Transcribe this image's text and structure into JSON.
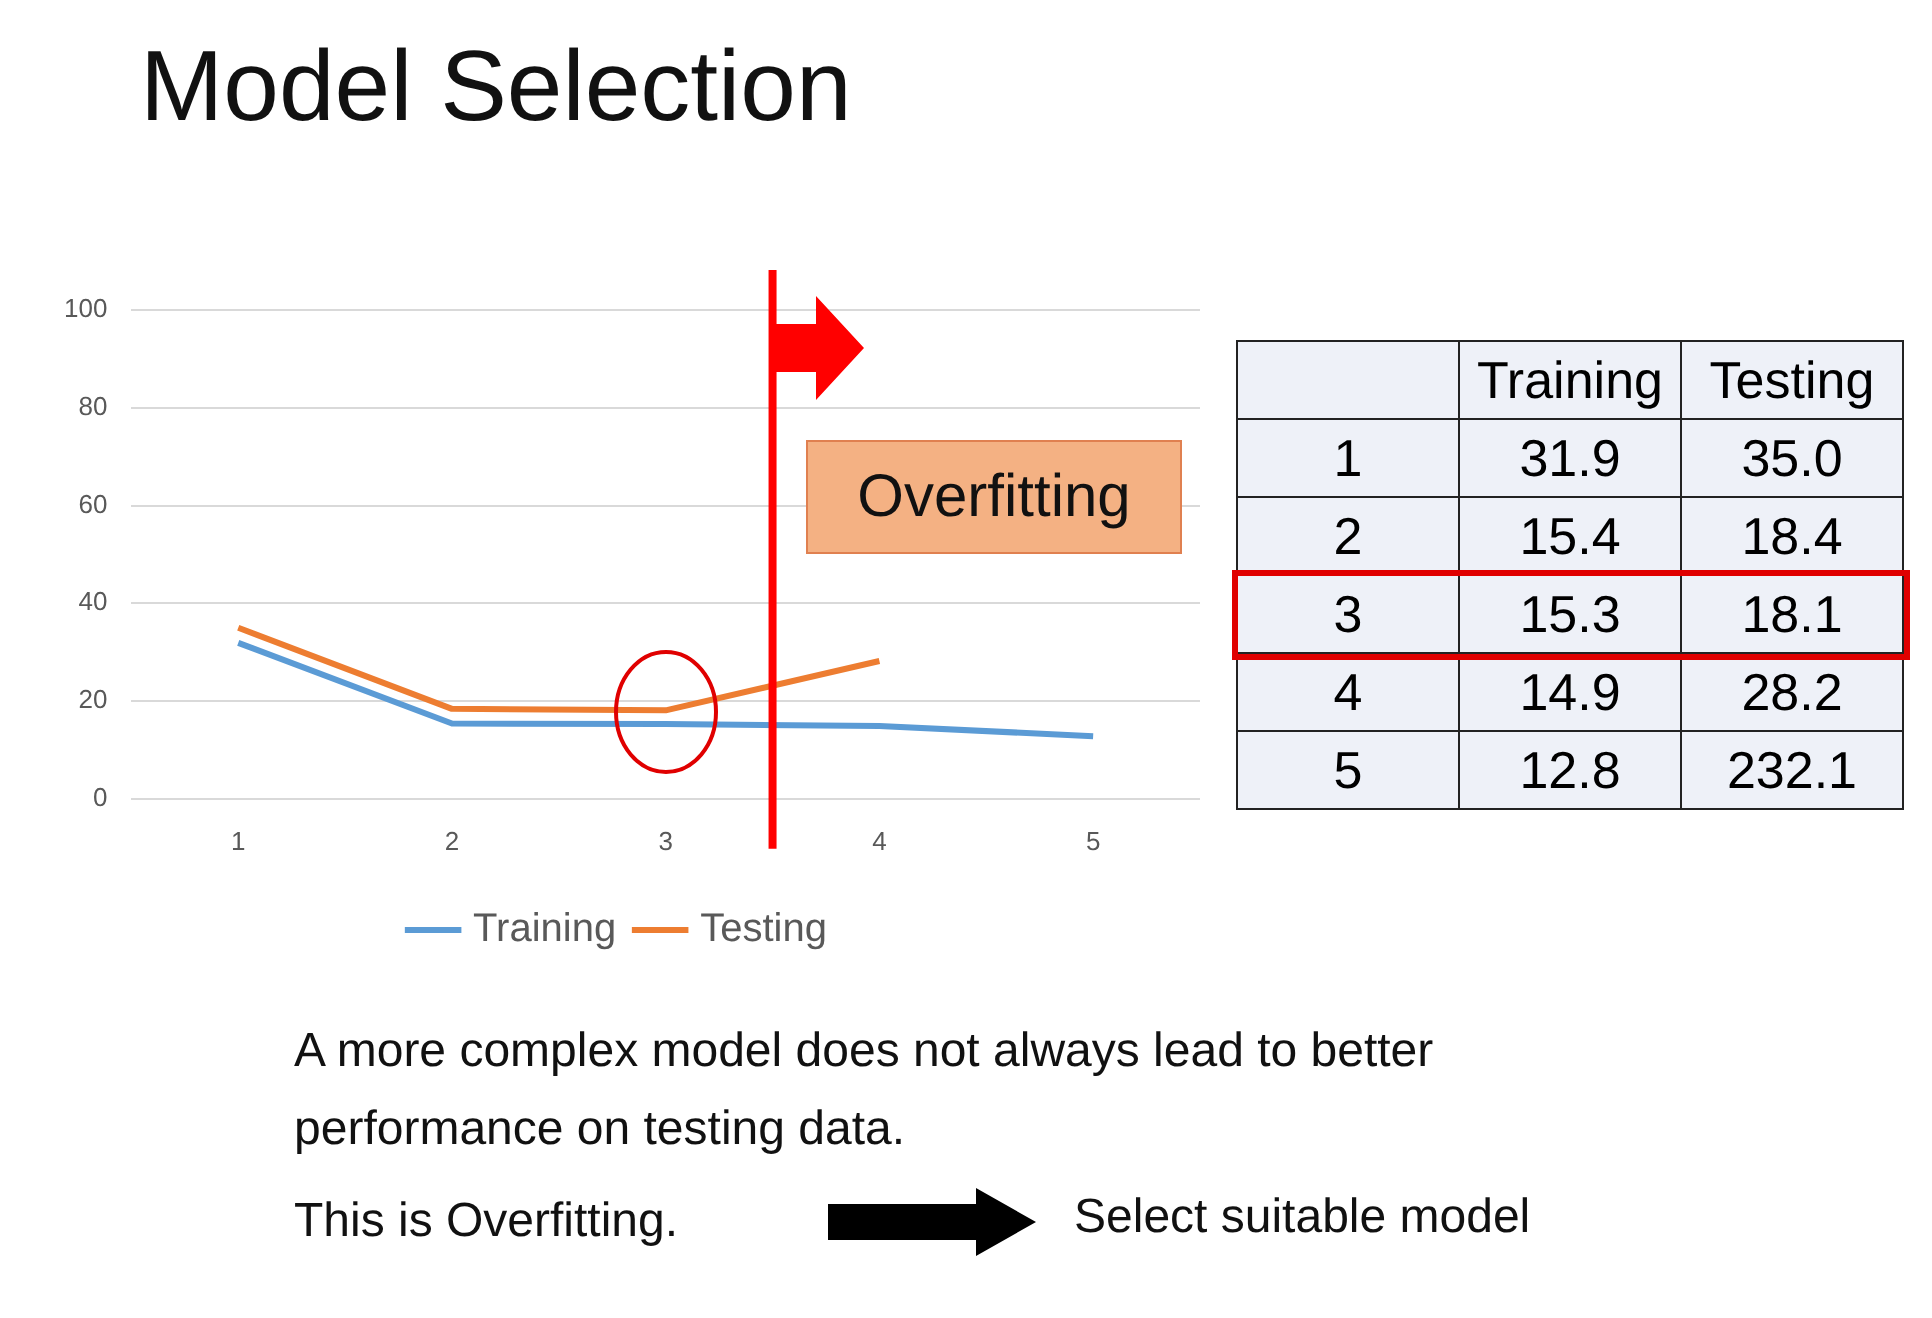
{
  "chart_data": [
    {
      "type": "line",
      "title": "Model Selection",
      "x": [
        1,
        2,
        3,
        4,
        5
      ],
      "xlim": [
        0.5,
        5.5
      ],
      "xticks": [
        1,
        2,
        3,
        4,
        5
      ],
      "ylim": [
        0,
        100
      ],
      "yticks": [
        0,
        20,
        40,
        60,
        80,
        100
      ],
      "grid": "y",
      "legend": "bottom",
      "marker": "none",
      "line_style": "solid",
      "series": [
        {
          "name": "Training",
          "color": "#5b9bd5",
          "values": [
            31.9,
            15.4,
            15.3,
            14.9,
            12.8
          ]
        },
        {
          "name": "Testing",
          "color": "#ed7d31",
          "values": [
            35.0,
            18.4,
            18.1,
            28.2,
            null
          ]
        }
      ],
      "ref_lines": [
        {
          "axis": "x",
          "value": 3.5,
          "label": null,
          "color": "#ff0000"
        }
      ],
      "annotations": [
        "Overfitting",
        "A more complex model does not always lead to better performance on testing data.",
        "This is Overfitting.",
        "Select suitable model"
      ]
    },
    {
      "type": "heatmap",
      "categories": [
        "Training",
        "Testing"
      ],
      "y_categories": [
        "1",
        "2",
        "3",
        "4",
        "5"
      ],
      "cells": [
        [
          31.9,
          35.0
        ],
        [
          15.4,
          18.4
        ],
        [
          15.3,
          18.1
        ],
        [
          14.9,
          28.2
        ],
        [
          12.8,
          232.1
        ]
      ],
      "cell_labels": [
        [
          "31.9",
          "35.0"
        ],
        [
          "15.4",
          "18.4"
        ],
        [
          "15.3",
          "18.1"
        ],
        [
          "14.9",
          "28.2"
        ],
        [
          "12.8",
          "232.1"
        ]
      ]
    }
  ]
}
